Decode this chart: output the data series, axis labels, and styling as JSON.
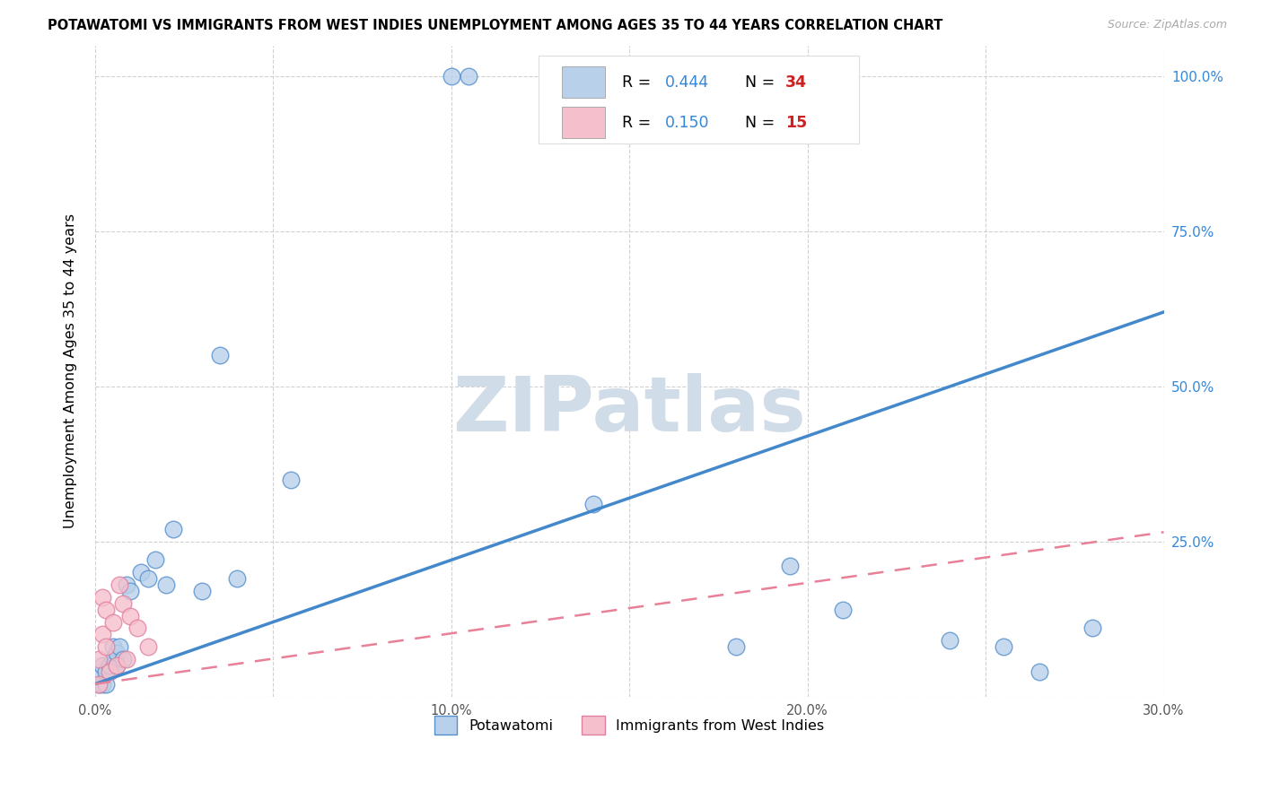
{
  "title": "POTAWATOMI VS IMMIGRANTS FROM WEST INDIES UNEMPLOYMENT AMONG AGES 35 TO 44 YEARS CORRELATION CHART",
  "source": "Source: ZipAtlas.com",
  "ylabel": "Unemployment Among Ages 35 to 44 years",
  "xlim": [
    0.0,
    0.3
  ],
  "ylim": [
    0.0,
    1.05
  ],
  "xtick_vals": [
    0.0,
    0.05,
    0.1,
    0.15,
    0.2,
    0.25,
    0.3
  ],
  "xtick_labels": [
    "0.0%",
    "",
    "10.0%",
    "",
    "20.0%",
    "",
    "30.0%"
  ],
  "ytick_vals": [
    0.0,
    0.25,
    0.5,
    0.75,
    1.0
  ],
  "ytick_right_labels": [
    "",
    "25.0%",
    "50.0%",
    "75.0%",
    "100.0%"
  ],
  "legend_r1": "0.444",
  "legend_n1": "34",
  "legend_r2": "0.150",
  "legend_n2": "15",
  "color_blue_fill": "#b8d0ea",
  "color_blue_edge": "#5590cc",
  "color_pink_fill": "#f5c0cc",
  "color_pink_edge": "#e080a0",
  "line_blue_color": "#4488cc",
  "line_pink_color": "#e88098",
  "watermark_color": "#d0dce8",
  "r_color": "#3388dd",
  "n_color": "#cc2222",
  "grid_color": "#cccccc",
  "potawatomi_x": [
    0.001,
    0.001,
    0.002,
    0.002,
    0.003,
    0.003,
    0.004,
    0.005,
    0.005,
    0.006,
    0.006,
    0.007,
    0.008,
    0.009,
    0.01,
    0.013,
    0.015,
    0.017,
    0.02,
    0.022,
    0.03,
    0.035,
    0.04,
    0.055,
    0.1,
    0.105,
    0.14,
    0.18,
    0.195,
    0.21,
    0.24,
    0.255,
    0.265,
    0.28
  ],
  "potawatomi_y": [
    0.02,
    0.04,
    0.02,
    0.05,
    0.02,
    0.04,
    0.05,
    0.06,
    0.08,
    0.05,
    0.07,
    0.08,
    0.06,
    0.18,
    0.17,
    0.2,
    0.19,
    0.22,
    0.18,
    0.27,
    0.17,
    0.55,
    0.19,
    0.35,
    1.0,
    1.0,
    0.31,
    0.08,
    0.21,
    0.14,
    0.09,
    0.08,
    0.04,
    0.11
  ],
  "westindies_x": [
    0.001,
    0.001,
    0.002,
    0.002,
    0.003,
    0.003,
    0.004,
    0.005,
    0.006,
    0.007,
    0.008,
    0.009,
    0.01,
    0.012,
    0.015
  ],
  "westindies_y": [
    0.02,
    0.06,
    0.1,
    0.16,
    0.08,
    0.14,
    0.04,
    0.12,
    0.05,
    0.18,
    0.15,
    0.06,
    0.13,
    0.11,
    0.08
  ]
}
